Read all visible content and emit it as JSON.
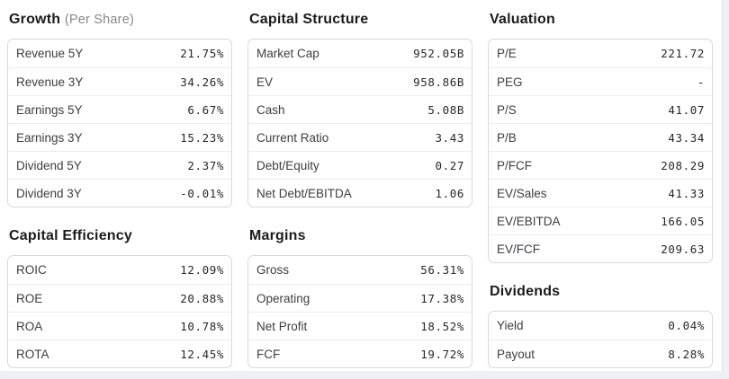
{
  "theme": {
    "page_background": "#eef0f5",
    "content_background": "#ffffff",
    "content_edge": "#e2e2e9",
    "card_border": "#d8d8de",
    "row_divider": "#ededf1",
    "title_color": "#1b1b1f",
    "subtitle_color": "#87878f",
    "label_color": "#3d3d44",
    "value_color": "#28282c"
  },
  "columns": [
    {
      "sections": [
        {
          "id": "growth",
          "title": "Growth",
          "subtitle": "(Per Share)",
          "rows": [
            {
              "label": "Revenue 5Y",
              "value": "21.75%"
            },
            {
              "label": "Revenue 3Y",
              "value": "34.26%"
            },
            {
              "label": "Earnings 5Y",
              "value": "6.67%"
            },
            {
              "label": "Earnings 3Y",
              "value": "15.23%"
            },
            {
              "label": "Dividend 5Y",
              "value": "2.37%"
            },
            {
              "label": "Dividend 3Y",
              "value": "-0.01%"
            }
          ]
        },
        {
          "id": "capital-efficiency",
          "title": "Capital Efficiency",
          "subtitle": "",
          "rows": [
            {
              "label": "ROIC",
              "value": "12.09%"
            },
            {
              "label": "ROE",
              "value": "20.88%"
            },
            {
              "label": "ROA",
              "value": "10.78%"
            },
            {
              "label": "ROTA",
              "value": "12.45%"
            }
          ]
        }
      ]
    },
    {
      "sections": [
        {
          "id": "capital-structure",
          "title": "Capital Structure",
          "subtitle": "",
          "rows": [
            {
              "label": "Market Cap",
              "value": "952.05B"
            },
            {
              "label": "EV",
              "value": "958.86B"
            },
            {
              "label": "Cash",
              "value": "5.08B"
            },
            {
              "label": "Current Ratio",
              "value": "3.43"
            },
            {
              "label": "Debt/Equity",
              "value": "0.27"
            },
            {
              "label": "Net Debt/EBITDA",
              "value": "1.06"
            }
          ]
        },
        {
          "id": "margins",
          "title": "Margins",
          "subtitle": "",
          "rows": [
            {
              "label": "Gross",
              "value": "56.31%"
            },
            {
              "label": "Operating",
              "value": "17.38%"
            },
            {
              "label": "Net Profit",
              "value": "18.52%"
            },
            {
              "label": "FCF",
              "value": "19.72%"
            }
          ]
        }
      ]
    },
    {
      "sections": [
        {
          "id": "valuation",
          "title": "Valuation",
          "subtitle": "",
          "rows": [
            {
              "label": "P/E",
              "value": "221.72"
            },
            {
              "label": "PEG",
              "value": "-"
            },
            {
              "label": "P/S",
              "value": "41.07"
            },
            {
              "label": "P/B",
              "value": "43.34"
            },
            {
              "label": "P/FCF",
              "value": "208.29"
            },
            {
              "label": "EV/Sales",
              "value": "41.33"
            },
            {
              "label": "EV/EBITDA",
              "value": "166.05"
            },
            {
              "label": "EV/FCF",
              "value": "209.63"
            }
          ]
        },
        {
          "id": "dividends",
          "title": "Dividends",
          "subtitle": "",
          "rows": [
            {
              "label": "Yield",
              "value": "0.04%"
            },
            {
              "label": "Payout",
              "value": "8.28%"
            }
          ]
        }
      ]
    }
  ]
}
